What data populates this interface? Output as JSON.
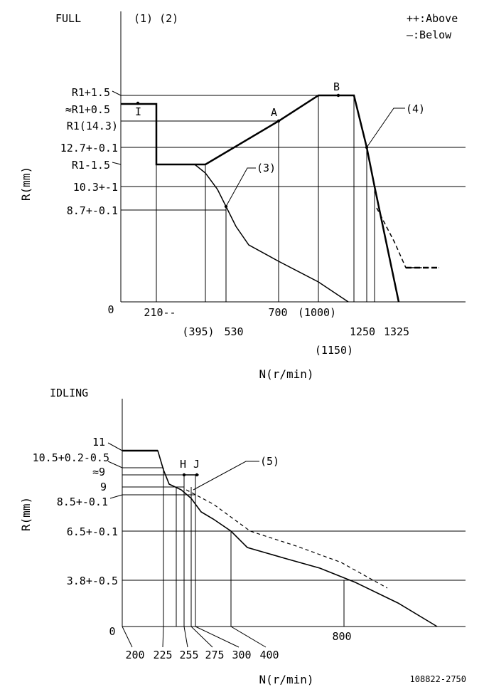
{
  "legend": {
    "above": "++:Above",
    "below": "—:Below"
  },
  "drawing_number": "108822-2750",
  "full": {
    "title": "FULL",
    "notes": "(1) (2)",
    "y_axis_label": "R(mm)",
    "x_axis_label": "N(r/min)",
    "y_labels": [
      "R1+1.5",
      "≈R1+0.5",
      "R1(14.3)",
      "12.7+-0.1",
      "R1-1.5",
      "10.3+-1",
      "8.7+-0.1",
      "0"
    ],
    "x_labels": [
      "210--",
      "(395)",
      "530",
      "700",
      "(1000)",
      "(1150)",
      "1250",
      "1325"
    ],
    "points": {
      "I": "I",
      "A": "A",
      "B": "B"
    },
    "callouts": [
      "(3)",
      "(4)"
    ]
  },
  "idling": {
    "title": "IDLING",
    "y_axis_label": "R(mm)",
    "x_axis_label": "N(r/min)",
    "y_labels": [
      "11",
      "10.5+0.2-0.5",
      "≈9",
      "9",
      "8.5+-0.1",
      "6.5+-0.1",
      "3.8+-0.5",
      "0"
    ],
    "x_labels": [
      "200",
      "225",
      "255",
      "275",
      "300",
      "400",
      "800"
    ],
    "points": {
      "H": "H",
      "J": "J"
    },
    "callouts": [
      "(5)"
    ]
  }
}
